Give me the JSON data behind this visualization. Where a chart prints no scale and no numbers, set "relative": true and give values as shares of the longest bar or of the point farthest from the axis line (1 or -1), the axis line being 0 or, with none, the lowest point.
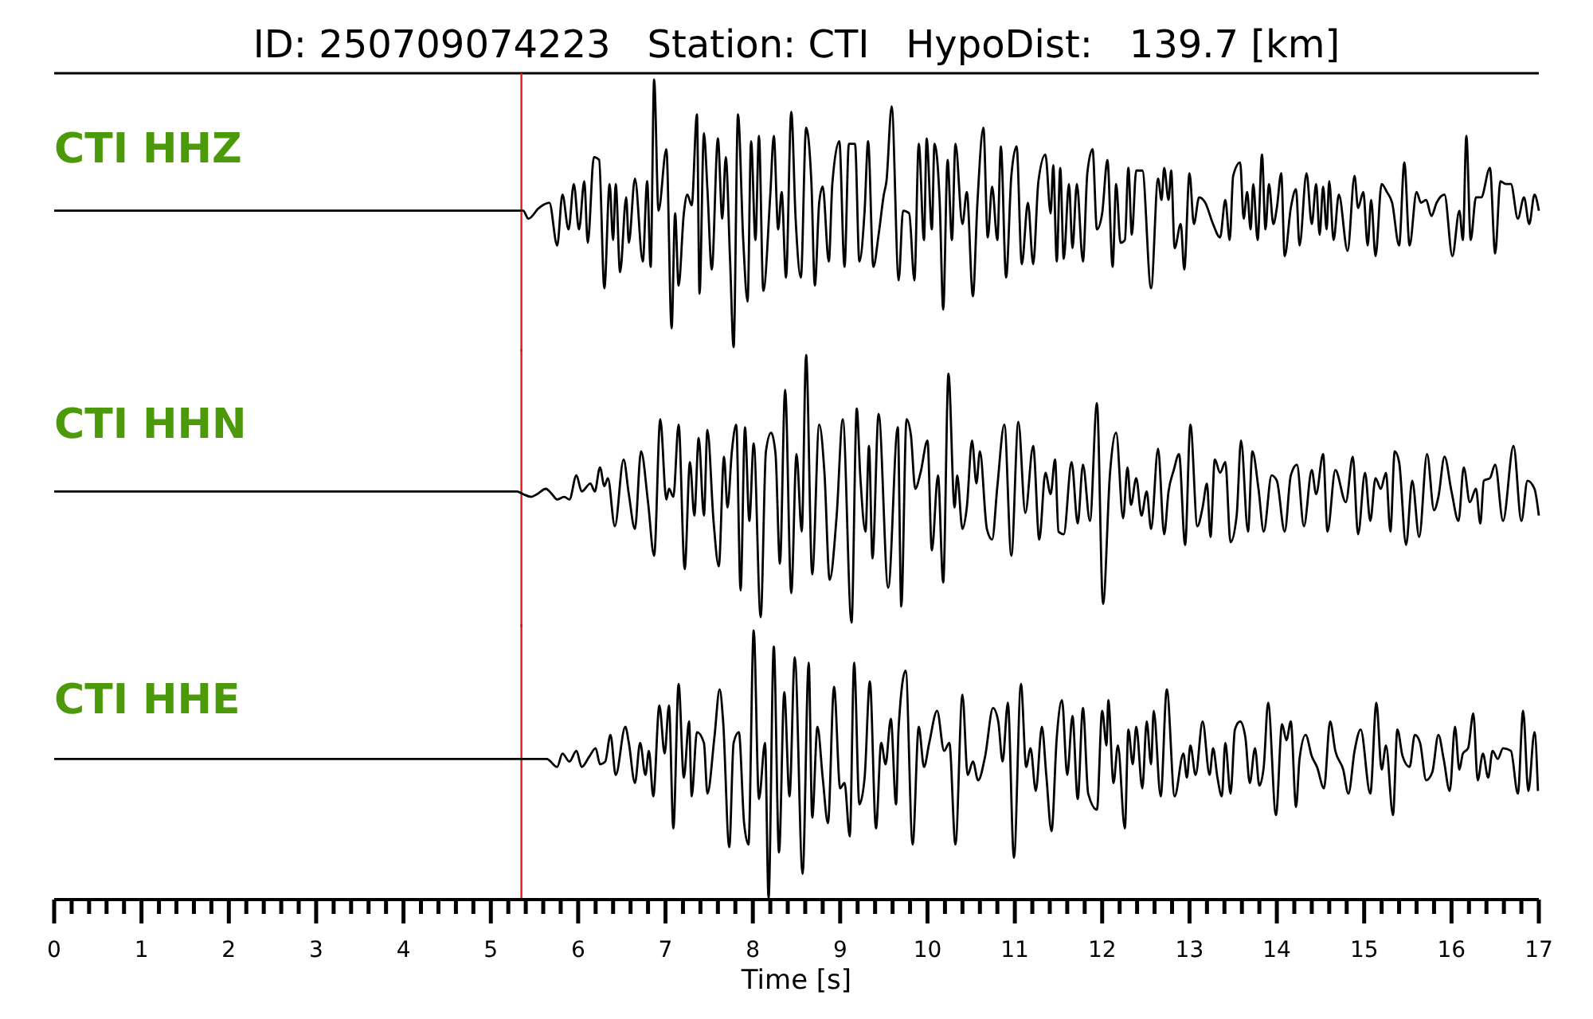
{
  "chart_data": [
    {
      "type": "other",
      "title": "ID: 250709074223   Station: CTI   HypoDist:   139.7 [km]"
    },
    {
      "type": "line",
      "title": "CTI HHZ",
      "relative": true,
      "xlim": [
        0,
        17
      ],
      "tick_labels": false,
      "line_style": "solid",
      "marker": "none",
      "grid": false,
      "ref_lines": [
        {
          "axis": "x",
          "value": 5.35,
          "color": "#e31a1c"
        }
      ],
      "series": [
        {
          "color": "#000000",
          "x": [
            0,
            2.5,
            5.3,
            5.37,
            5.43,
            5.55,
            5.67,
            5.76,
            5.82,
            5.89,
            5.95,
            6.01,
            6.07,
            6.11,
            6.18,
            6.24,
            6.3,
            6.36,
            6.4,
            6.43,
            6.48,
            6.55,
            6.58,
            6.65,
            6.74,
            6.79,
            6.83,
            6.87,
            6.92,
            7.01,
            7.07,
            7.11,
            7.15,
            7.21,
            7.25,
            7.3,
            7.36,
            7.39,
            7.44,
            7.48,
            7.53,
            7.6,
            7.65,
            7.69,
            7.74,
            7.78,
            7.83,
            7.89,
            7.94,
            7.98,
            8.03,
            8.07,
            8.12,
            8.2,
            8.24,
            8.29,
            8.33,
            8.38,
            8.44,
            8.49,
            8.55,
            8.61,
            8.67,
            8.71,
            8.76,
            8.8,
            8.87,
            8.91,
            8.99,
            9.05,
            9.1,
            9.17,
            9.22,
            9.28,
            9.32,
            9.38,
            9.44,
            9.5,
            9.53,
            9.59,
            9.67,
            9.72,
            9.79,
            9.85,
            9.9,
            9.96,
            9.99,
            10.05,
            10.08,
            10.14,
            10.18,
            10.23,
            10.28,
            10.32,
            10.4,
            10.45,
            10.52,
            10.57,
            10.64,
            10.69,
            10.74,
            10.8,
            10.84,
            10.9,
            10.96,
            11.02,
            11.08,
            11.15,
            11.21,
            11.27,
            11.35,
            11.41,
            11.44,
            11.48,
            11.52,
            11.56,
            11.62,
            11.66,
            11.71,
            11.78,
            11.83,
            11.89,
            11.94,
            12.0,
            12.06,
            12.12,
            12.16,
            12.21,
            12.26,
            12.3,
            12.34,
            12.39,
            12.46,
            12.56,
            12.64,
            12.68,
            12.71,
            12.76,
            12.79,
            12.83,
            12.9,
            12.94,
            13.0,
            13.05,
            13.11,
            13.18,
            13.27,
            13.35,
            13.41,
            13.46,
            13.5,
            13.58,
            13.62,
            13.66,
            13.7,
            13.73,
            13.78,
            13.83,
            13.87,
            13.91,
            13.96,
            14.0,
            14.05,
            14.09,
            14.16,
            14.22,
            14.26,
            14.34,
            14.4,
            14.45,
            14.49,
            14.53,
            14.57,
            14.6,
            14.65,
            14.71,
            14.81,
            14.89,
            14.93,
            14.99,
            15.04,
            15.08,
            15.13,
            15.2,
            15.26,
            15.32,
            15.4,
            15.46,
            15.52,
            15.6,
            15.65,
            15.71,
            15.77,
            15.83,
            15.92,
            16.01,
            16.09,
            16.13,
            16.17,
            16.22,
            16.28,
            16.34,
            16.44,
            16.5,
            16.56,
            16.62,
            16.68,
            16.76,
            16.83,
            16.89,
            16.95,
            17.0
          ],
          "values": [
            0.51,
            0.51,
            0.51,
            0.51,
            0.48,
            0.52,
            0.54,
            0.38,
            0.57,
            0.44,
            0.61,
            0.44,
            0.62,
            0.39,
            0.71,
            0.7,
            0.22,
            0.61,
            0.4,
            0.61,
            0.28,
            0.56,
            0.39,
            0.63,
            0.32,
            0.62,
            0.3,
            1.0,
            0.51,
            0.74,
            0.07,
            0.5,
            0.23,
            0.5,
            0.57,
            0.53,
            0.87,
            0.2,
            0.8,
            0.59,
            0.29,
            0.78,
            0.48,
            0.71,
            0.32,
            0.0,
            0.87,
            0.4,
            0.17,
            0.77,
            0.4,
            0.79,
            0.21,
            0.57,
            0.79,
            0.44,
            0.58,
            0.26,
            0.88,
            0.48,
            0.26,
            0.82,
            0.62,
            0.23,
            0.54,
            0.6,
            0.32,
            0.61,
            0.77,
            0.3,
            0.76,
            0.76,
            0.32,
            0.51,
            0.77,
            0.3,
            0.42,
            0.57,
            0.62,
            0.9,
            0.25,
            0.51,
            0.5,
            0.25,
            0.76,
            0.4,
            0.78,
            0.44,
            0.76,
            0.54,
            0.14,
            0.7,
            0.4,
            0.76,
            0.46,
            0.58,
            0.19,
            0.53,
            0.82,
            0.41,
            0.6,
            0.4,
            0.75,
            0.26,
            0.64,
            0.75,
            0.31,
            0.54,
            0.31,
            0.62,
            0.72,
            0.5,
            0.68,
            0.32,
            0.67,
            0.33,
            0.61,
            0.37,
            0.61,
            0.32,
            0.65,
            0.74,
            0.44,
            0.5,
            0.7,
            0.3,
            0.61,
            0.39,
            0.4,
            0.67,
            0.42,
            0.66,
            0.66,
            0.22,
            0.63,
            0.55,
            0.67,
            0.55,
            0.66,
            0.37,
            0.46,
            0.29,
            0.65,
            0.46,
            0.56,
            0.54,
            0.46,
            0.41,
            0.55,
            0.4,
            0.64,
            0.69,
            0.48,
            0.58,
            0.44,
            0.61,
            0.4,
            0.72,
            0.44,
            0.61,
            0.46,
            0.52,
            0.65,
            0.34,
            0.52,
            0.59,
            0.38,
            0.65,
            0.46,
            0.61,
            0.42,
            0.6,
            0.44,
            0.62,
            0.4,
            0.57,
            0.36,
            0.64,
            0.52,
            0.58,
            0.38,
            0.55,
            0.34,
            0.61,
            0.58,
            0.54,
            0.38,
            0.69,
            0.38,
            0.58,
            0.54,
            0.55,
            0.49,
            0.54,
            0.57,
            0.34,
            0.51,
            0.4,
            0.79,
            0.4,
            0.56,
            0.56,
            0.67,
            0.35,
            0.62,
            0.61,
            0.61,
            0.48,
            0.56,
            0.46,
            0.57,
            0.51
          ]
        }
      ]
    },
    {
      "type": "line",
      "title": "CTI HHN",
      "relative": true,
      "xlim": [
        0,
        17
      ],
      "tick_labels": false,
      "line_style": "solid",
      "marker": "none",
      "grid": false,
      "ref_lines": [
        {
          "axis": "x",
          "value": 5.35,
          "color": "#e31a1c"
        }
      ],
      "series": [
        {
          "color": "#000000",
          "x": [
            0,
            2.5,
            5.3,
            5.37,
            5.46,
            5.53,
            5.63,
            5.7,
            5.76,
            5.84,
            5.9,
            5.98,
            6.04,
            6.14,
            6.19,
            6.25,
            6.3,
            6.34,
            6.42,
            6.52,
            6.58,
            6.65,
            6.72,
            6.8,
            6.87,
            6.94,
            7.01,
            7.04,
            7.09,
            7.15,
            7.22,
            7.28,
            7.33,
            7.38,
            7.44,
            7.48,
            7.55,
            7.61,
            7.67,
            7.71,
            7.76,
            7.81,
            7.86,
            7.91,
            7.96,
            8.01,
            8.09,
            8.15,
            8.21,
            8.26,
            8.31,
            8.37,
            8.44,
            8.5,
            8.56,
            8.61,
            8.68,
            8.76,
            8.82,
            8.88,
            8.96,
            9.03,
            9.13,
            9.19,
            9.23,
            9.29,
            9.33,
            9.37,
            9.44,
            9.55,
            9.66,
            9.7,
            9.76,
            9.81,
            9.86,
            9.92,
            10.0,
            10.05,
            10.12,
            10.18,
            10.24,
            10.31,
            10.34,
            10.4,
            10.45,
            10.51,
            10.56,
            10.6,
            10.68,
            10.74,
            10.8,
            10.88,
            10.96,
            11.04,
            11.12,
            11.21,
            11.28,
            11.35,
            11.41,
            11.46,
            11.5,
            11.56,
            11.65,
            11.72,
            11.78,
            11.86,
            11.94,
            12.01,
            12.09,
            12.16,
            12.24,
            12.29,
            12.33,
            12.39,
            12.45,
            12.51,
            12.56,
            12.64,
            12.71,
            12.76,
            12.82,
            12.88,
            12.95,
            13.01,
            13.09,
            13.15,
            13.2,
            13.24,
            13.29,
            13.35,
            13.41,
            13.47,
            13.54,
            13.59,
            13.67,
            13.72,
            13.79,
            13.85,
            13.94,
            14.0,
            14.09,
            14.16,
            14.23,
            14.31,
            14.4,
            14.45,
            14.53,
            14.58,
            14.67,
            14.79,
            14.87,
            14.93,
            15.01,
            15.07,
            15.13,
            15.19,
            15.25,
            15.3,
            15.35,
            15.4,
            15.48,
            15.55,
            15.63,
            15.72,
            15.8,
            15.85,
            15.92,
            16.0,
            16.08,
            16.14,
            16.21,
            16.28,
            16.33,
            16.37,
            16.44,
            16.5,
            16.59,
            16.71,
            16.8,
            16.87,
            16.95,
            17.0
          ],
          "values": [
            0.49,
            0.49,
            0.49,
            0.48,
            0.47,
            0.48,
            0.5,
            0.48,
            0.46,
            0.47,
            0.46,
            0.55,
            0.49,
            0.52,
            0.49,
            0.58,
            0.51,
            0.54,
            0.36,
            0.61,
            0.48,
            0.35,
            0.64,
            0.45,
            0.25,
            0.76,
            0.46,
            0.5,
            0.47,
            0.74,
            0.2,
            0.6,
            0.4,
            0.69,
            0.4,
            0.72,
            0.38,
            0.21,
            0.62,
            0.43,
            0.64,
            0.74,
            0.12,
            0.73,
            0.38,
            0.67,
            0.02,
            0.64,
            0.71,
            0.63,
            0.22,
            0.87,
            0.11,
            0.63,
            0.34,
            1.0,
            0.18,
            0.74,
            0.56,
            0.16,
            0.4,
            0.76,
            0.0,
            0.8,
            0.55,
            0.34,
            0.66,
            0.24,
            0.78,
            0.13,
            0.73,
            0.06,
            0.76,
            0.7,
            0.5,
            0.56,
            0.68,
            0.27,
            0.55,
            0.15,
            0.93,
            0.43,
            0.55,
            0.35,
            0.43,
            0.68,
            0.52,
            0.64,
            0.35,
            0.31,
            0.51,
            0.74,
            0.25,
            0.75,
            0.41,
            0.66,
            0.31,
            0.56,
            0.48,
            0.61,
            0.34,
            0.33,
            0.6,
            0.37,
            0.59,
            0.38,
            0.82,
            0.07,
            0.56,
            0.71,
            0.39,
            0.58,
            0.44,
            0.54,
            0.4,
            0.49,
            0.35,
            0.65,
            0.33,
            0.49,
            0.57,
            0.63,
            0.29,
            0.74,
            0.36,
            0.43,
            0.52,
            0.32,
            0.61,
            0.56,
            0.6,
            0.3,
            0.4,
            0.68,
            0.34,
            0.64,
            0.5,
            0.34,
            0.55,
            0.53,
            0.34,
            0.55,
            0.59,
            0.36,
            0.57,
            0.48,
            0.63,
            0.34,
            0.57,
            0.45,
            0.62,
            0.33,
            0.56,
            0.38,
            0.54,
            0.5,
            0.56,
            0.34,
            0.64,
            0.6,
            0.29,
            0.53,
            0.32,
            0.63,
            0.42,
            0.47,
            0.62,
            0.49,
            0.38,
            0.58,
            0.45,
            0.5,
            0.37,
            0.53,
            0.54,
            0.59,
            0.38,
            0.66,
            0.38,
            0.53,
            0.5,
            0.4
          ]
        }
      ]
    },
    {
      "type": "line",
      "title": "CTI HHE",
      "xlabel": "Time [s]",
      "relative": true,
      "xlim": [
        0,
        17
      ],
      "tick_labels": "x",
      "line_style": "solid",
      "marker": "none",
      "grid": false,
      "xticks": [
        0,
        {
          "value": 0.2,
          "label": null
        },
        {
          "value": 0.4,
          "label": null
        },
        {
          "value": 0.6,
          "label": null
        },
        {
          "value": 0.8,
          "label": null
        },
        1,
        {
          "value": 1.2,
          "label": null
        },
        {
          "value": 1.4,
          "label": null
        },
        {
          "value": 1.6,
          "label": null
        },
        {
          "value": 1.8,
          "label": null
        },
        2,
        {
          "value": 2.2,
          "label": null
        },
        {
          "value": 2.4,
          "label": null
        },
        {
          "value": 2.6,
          "label": null
        },
        {
          "value": 2.8,
          "label": null
        },
        3,
        {
          "value": 3.2,
          "label": null
        },
        {
          "value": 3.4,
          "label": null
        },
        {
          "value": 3.6,
          "label": null
        },
        {
          "value": 3.8,
          "label": null
        },
        4,
        {
          "value": 4.2,
          "label": null
        },
        {
          "value": 4.4,
          "label": null
        },
        {
          "value": 4.6,
          "label": null
        },
        {
          "value": 4.8,
          "label": null
        },
        5,
        {
          "value": 5.2,
          "label": null
        },
        {
          "value": 5.4,
          "label": null
        },
        {
          "value": 5.6,
          "label": null
        },
        {
          "value": 5.8,
          "label": null
        },
        6,
        {
          "value": 6.2,
          "label": null
        },
        {
          "value": 6.4,
          "label": null
        },
        {
          "value": 6.6,
          "label": null
        },
        {
          "value": 6.8,
          "label": null
        },
        7,
        {
          "value": 7.2,
          "label": null
        },
        {
          "value": 7.4,
          "label": null
        },
        {
          "value": 7.6,
          "label": null
        },
        {
          "value": 7.8,
          "label": null
        },
        8,
        {
          "value": 8.2,
          "label": null
        },
        {
          "value": 8.4,
          "label": null
        },
        {
          "value": 8.6,
          "label": null
        },
        {
          "value": 8.8,
          "label": null
        },
        9,
        {
          "value": 9.2,
          "label": null
        },
        {
          "value": 9.4,
          "label": null
        },
        {
          "value": 9.6,
          "label": null
        },
        {
          "value": 9.8,
          "label": null
        },
        10,
        {
          "value": 10.2,
          "label": null
        },
        {
          "value": 10.4,
          "label": null
        },
        {
          "value": 10.6,
          "label": null
        },
        {
          "value": 10.8,
          "label": null
        },
        11,
        {
          "value": 11.2,
          "label": null
        },
        {
          "value": 11.4,
          "label": null
        },
        {
          "value": 11.6,
          "label": null
        },
        {
          "value": 11.8,
          "label": null
        },
        12,
        {
          "value": 12.2,
          "label": null
        },
        {
          "value": 12.4,
          "label": null
        },
        {
          "value": 12.6,
          "label": null
        },
        {
          "value": 12.8,
          "label": null
        },
        13,
        {
          "value": 13.2,
          "label": null
        },
        {
          "value": 13.4,
          "label": null
        },
        {
          "value": 13.6,
          "label": null
        },
        {
          "value": 13.8,
          "label": null
        },
        14,
        {
          "value": 14.2,
          "label": null
        },
        {
          "value": 14.4,
          "label": null
        },
        {
          "value": 14.6,
          "label": null
        },
        {
          "value": 14.8,
          "label": null
        },
        15,
        {
          "value": 15.2,
          "label": null
        },
        {
          "value": 15.4,
          "label": null
        },
        {
          "value": 15.6,
          "label": null
        },
        {
          "value": 15.8,
          "label": null
        },
        16,
        {
          "value": 16.2,
          "label": null
        },
        {
          "value": 16.4,
          "label": null
        },
        {
          "value": 16.6,
          "label": null
        },
        {
          "value": 16.8,
          "label": null
        },
        17
      ],
      "ref_lines": [
        {
          "axis": "x",
          "value": 5.35,
          "color": "#e31a1c"
        }
      ],
      "series": [
        {
          "color": "#000000",
          "x": [
            0,
            2.5,
            5.3,
            5.37,
            5.52,
            5.64,
            5.76,
            5.82,
            5.9,
            5.98,
            6.04,
            6.13,
            6.2,
            6.25,
            6.31,
            6.37,
            6.43,
            6.54,
            6.58,
            6.65,
            6.71,
            6.77,
            6.81,
            6.86,
            6.93,
            6.99,
            7.04,
            7.09,
            7.15,
            7.21,
            7.27,
            7.3,
            7.36,
            7.44,
            7.48,
            7.56,
            7.62,
            7.66,
            7.73,
            7.78,
            7.84,
            7.9,
            7.95,
            8.01,
            8.07,
            8.14,
            8.18,
            8.24,
            8.3,
            8.36,
            8.42,
            8.48,
            8.57,
            8.64,
            8.68,
            8.74,
            8.8,
            8.86,
            8.93,
            9.0,
            9.05,
            9.11,
            9.16,
            9.22,
            9.28,
            9.34,
            9.41,
            9.47,
            9.52,
            9.58,
            9.64,
            9.67,
            9.75,
            9.83,
            9.9,
            9.96,
            10.02,
            10.11,
            10.19,
            10.25,
            10.32,
            10.4,
            10.46,
            10.52,
            10.58,
            10.66,
            10.75,
            10.81,
            10.86,
            10.92,
            10.99,
            11.07,
            11.13,
            11.18,
            11.24,
            11.31,
            11.36,
            11.42,
            11.48,
            11.54,
            11.6,
            11.66,
            11.72,
            11.78,
            11.84,
            11.94,
            12.0,
            12.05,
            12.07,
            12.13,
            12.18,
            12.26,
            12.3,
            12.35,
            12.39,
            12.46,
            12.51,
            12.56,
            12.59,
            12.67,
            12.74,
            12.83,
            12.93,
            12.97,
            13.01,
            13.07,
            13.15,
            13.23,
            13.27,
            13.32,
            13.37,
            13.41,
            13.47,
            13.52,
            13.58,
            13.64,
            13.69,
            13.75,
            13.8,
            13.85,
            13.9,
            13.99,
            14.06,
            14.11,
            14.16,
            14.22,
            14.26,
            14.33,
            14.4,
            14.46,
            14.54,
            14.61,
            14.67,
            14.76,
            14.82,
            14.89,
            14.96,
            15.07,
            15.14,
            15.2,
            15.25,
            15.33,
            15.38,
            15.44,
            15.52,
            15.58,
            15.64,
            15.71,
            15.78,
            15.85,
            15.91,
            15.98,
            16.04,
            16.09,
            16.13,
            16.19,
            16.25,
            16.3,
            16.36,
            16.42,
            16.47,
            16.53,
            16.59,
            16.68,
            16.76,
            16.82,
            16.88,
            16.95,
            16.99
          ],
          "values": [
            0.52,
            0.52,
            0.52,
            0.52,
            0.52,
            0.52,
            0.49,
            0.54,
            0.51,
            0.55,
            0.49,
            0.53,
            0.56,
            0.5,
            0.51,
            0.61,
            0.46,
            0.64,
            0.58,
            0.43,
            0.58,
            0.46,
            0.55,
            0.38,
            0.72,
            0.54,
            0.72,
            0.26,
            0.8,
            0.45,
            0.66,
            0.38,
            0.62,
            0.58,
            0.39,
            0.6,
            0.78,
            0.66,
            0.19,
            0.58,
            0.62,
            0.28,
            0.2,
            1.0,
            0.37,
            0.58,
            0.0,
            0.94,
            0.17,
            0.77,
            0.38,
            0.9,
            0.09,
            0.88,
            0.3,
            0.64,
            0.45,
            0.28,
            0.79,
            0.41,
            0.43,
            0.23,
            0.88,
            0.35,
            0.45,
            0.81,
            0.26,
            0.58,
            0.5,
            0.67,
            0.35,
            0.64,
            0.85,
            0.2,
            0.64,
            0.49,
            0.58,
            0.7,
            0.55,
            0.58,
            0.2,
            0.76,
            0.46,
            0.51,
            0.44,
            0.53,
            0.71,
            0.66,
            0.51,
            0.73,
            0.15,
            0.8,
            0.49,
            0.56,
            0.4,
            0.64,
            0.46,
            0.25,
            0.6,
            0.74,
            0.46,
            0.68,
            0.37,
            0.71,
            0.39,
            0.33,
            0.7,
            0.57,
            0.74,
            0.43,
            0.57,
            0.26,
            0.63,
            0.5,
            0.64,
            0.41,
            0.66,
            0.5,
            0.7,
            0.38,
            0.78,
            0.38,
            0.54,
            0.45,
            0.57,
            0.46,
            0.66,
            0.46,
            0.56,
            0.45,
            0.38,
            0.58,
            0.39,
            0.63,
            0.66,
            0.6,
            0.43,
            0.56,
            0.42,
            0.49,
            0.73,
            0.31,
            0.65,
            0.59,
            0.66,
            0.34,
            0.52,
            0.61,
            0.53,
            0.49,
            0.41,
            0.66,
            0.55,
            0.48,
            0.39,
            0.55,
            0.63,
            0.39,
            0.73,
            0.48,
            0.57,
            0.31,
            0.63,
            0.53,
            0.49,
            0.61,
            0.58,
            0.44,
            0.47,
            0.61,
            0.52,
            0.4,
            0.64,
            0.48,
            0.54,
            0.56,
            0.69,
            0.44,
            0.54,
            0.45,
            0.55,
            0.52,
            0.56,
            0.55,
            0.39,
            0.7,
            0.4,
            0.62,
            0.4
          ]
        }
      ]
    }
  ]
}
